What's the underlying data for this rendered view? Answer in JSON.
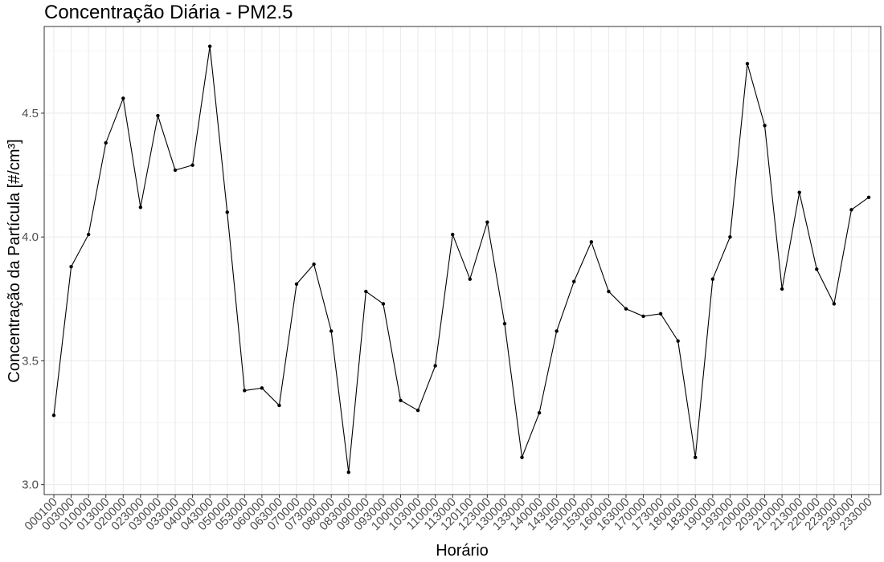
{
  "chart_data": {
    "type": "line",
    "title": "Concentração Diária - PM2.5",
    "xlabel": "Horário",
    "ylabel": "Concentração da Partícula [#/cm³]",
    "ylim": [
      2.96,
      4.85
    ],
    "yticks": [
      3.0,
      3.5,
      4.0,
      4.5
    ],
    "ytick_labels": [
      "3.0",
      "3.5",
      "4.0",
      "4.5"
    ],
    "grid": true,
    "legend": "none",
    "x": [
      "000100",
      "003000",
      "010000",
      "013000",
      "020000",
      "023000",
      "030000",
      "033000",
      "040000",
      "043000",
      "050000",
      "053000",
      "060000",
      "063000",
      "070000",
      "073000",
      "080000",
      "083000",
      "090000",
      "093000",
      "100000",
      "103000",
      "110000",
      "113000",
      "120100",
      "123000",
      "130000",
      "133000",
      "140000",
      "143000",
      "150000",
      "153000",
      "160000",
      "163000",
      "170000",
      "173000",
      "180000",
      "183000",
      "190000",
      "193000",
      "200000",
      "203000",
      "210000",
      "213000",
      "220000",
      "223000",
      "230000",
      "233000"
    ],
    "series": [
      {
        "values": [
          3.28,
          3.88,
          4.01,
          4.38,
          4.56,
          4.12,
          4.49,
          4.27,
          4.29,
          4.77,
          4.1,
          3.38,
          3.39,
          3.32,
          3.81,
          3.89,
          3.62,
          3.05,
          3.78,
          3.73,
          3.34,
          3.3,
          3.48,
          4.01,
          3.83,
          4.06,
          3.65,
          3.11,
          3.29,
          3.62,
          3.82,
          3.98,
          3.78,
          3.71,
          3.68,
          3.69,
          3.58,
          3.11,
          3.83,
          4.0,
          4.7,
          4.45,
          3.79,
          4.18,
          3.87,
          3.73,
          4.11,
          4.16
        ]
      }
    ]
  }
}
